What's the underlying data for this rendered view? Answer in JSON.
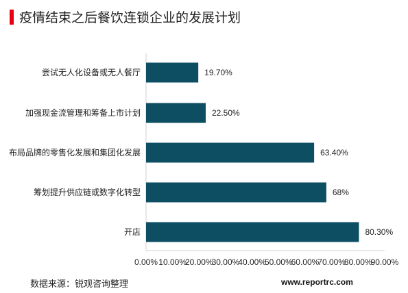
{
  "header": {
    "title": "疫情结束之后餐饮连锁企业的发展计划"
  },
  "footer": {
    "source": "数据来源：锐观咨询整理",
    "website": "www.reportrc.com"
  },
  "colors": {
    "accent": "#e60012",
    "bar": "#0e4e63"
  },
  "chart_data": {
    "type": "bar",
    "orientation": "horizontal",
    "categories": [
      "尝试无人化设备或无人餐厅",
      "加强现金流管理和筹备上市计划",
      "布局品牌的零售化发展和集团化发展",
      "筹划提升供应链或数字化转型",
      "开店"
    ],
    "values": [
      19.7,
      22.5,
      63.4,
      68,
      80.3
    ],
    "value_labels": [
      "19.70%",
      "22.50%",
      "63.40%",
      "68%",
      "80.30%"
    ],
    "xlim": [
      0,
      90
    ],
    "x_ticks": [
      "0.00%",
      "10.00%",
      "20.00%",
      "30.00%",
      "40.00%",
      "50.00%",
      "60.00%",
      "70.00%",
      "80.00%",
      "90.00%"
    ],
    "grid": false,
    "legend": "none"
  }
}
